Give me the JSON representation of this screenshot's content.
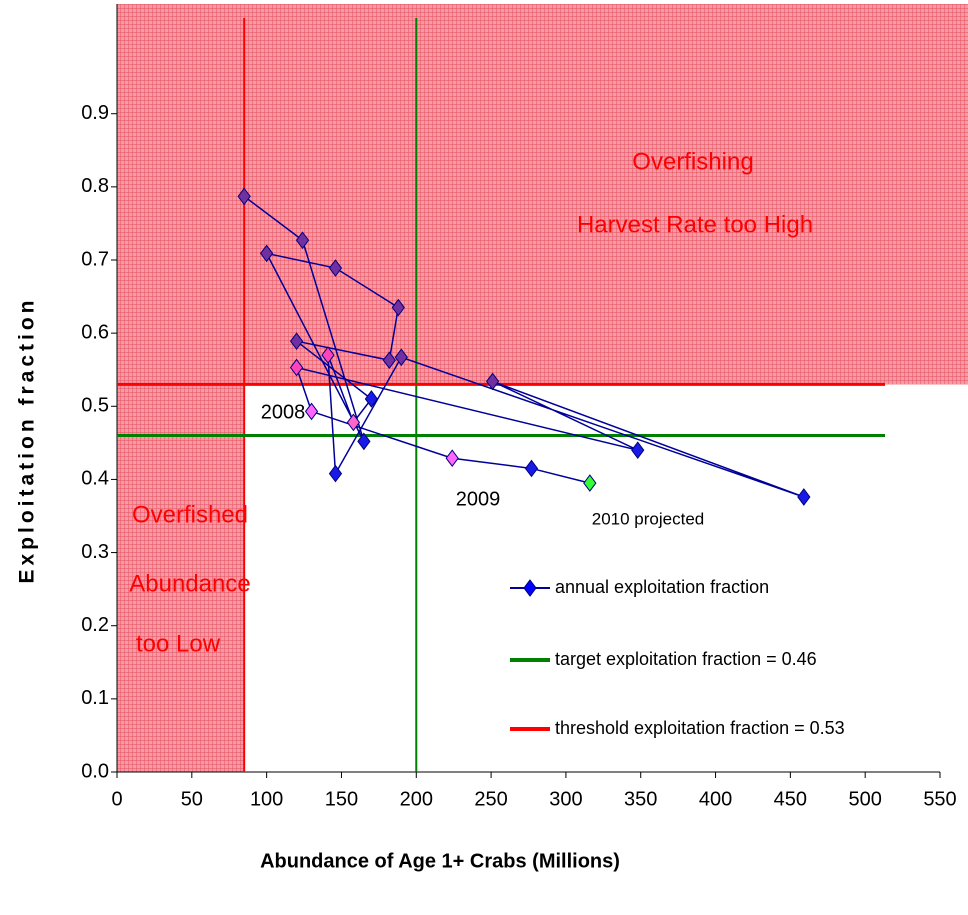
{
  "chart_data": {
    "type": "line",
    "x_label": "Abundance of Age 1+ Crabs (Millions)",
    "y_label": "Exploitation fraction",
    "xlim": [
      0,
      550
    ],
    "ylim": [
      0,
      1.05
    ],
    "xticks": [
      0,
      50,
      100,
      150,
      200,
      250,
      300,
      350,
      400,
      450,
      500,
      550
    ],
    "yticks": [
      {
        "value": 0,
        "label": "0.0"
      },
      0.1,
      0.2,
      0.3,
      0.4,
      0.5,
      0.6,
      0.7,
      0.8,
      0.9
    ],
    "series": [
      {
        "name": "annual exploitation fraction",
        "color": "#000099",
        "marker_color": "#0000ff",
        "x": [
          85,
          124,
          165,
          100,
          146,
          188,
          182,
          120,
          170,
          158,
          141,
          146,
          190,
          459,
          251,
          348,
          120,
          130,
          224,
          277,
          316
        ],
        "values": [
          0.787,
          0.727,
          0.452,
          0.709,
          0.689,
          0.635,
          0.563,
          0.589,
          0.51,
          0.478,
          0.57,
          0.408,
          0.567,
          0.376,
          0.534,
          0.44,
          0.553,
          0.493,
          0.429,
          0.415,
          0.395
        ],
        "marker_colors": [
          "#7030a0",
          "#7030a0",
          "#1a1ae6",
          "#7030a0",
          "#7030a0",
          "#7030a0",
          "#7030a0",
          "#7030a0",
          "#1a1ae6",
          "#ff66cc",
          "#ff44bb",
          "#1a1ae6",
          "#7030a0",
          "#1a1ae6",
          "#7030a0",
          "#1a1ae6",
          "#ff44bb",
          "#ff66ff",
          "#ff66ff",
          "#1a1ae6",
          "#33ff33"
        ]
      }
    ],
    "hlines": [
      {
        "name": "target exploitation fraction = 0.46",
        "value": 0.46,
        "color": "#008000"
      },
      {
        "name": "threshold exploitation fraction = 0.53",
        "value": 0.53,
        "color": "#ff0000"
      }
    ],
    "vlines": [
      {
        "value": 85,
        "color": "#ff0000"
      },
      {
        "value": 200,
        "color": "#008000"
      }
    ],
    "annotations": [
      "Overfishing",
      "Harvest Rate too High",
      "Overfished",
      "Abundance",
      "too Low",
      "2008",
      "2009",
      "2010 projected"
    ]
  }
}
